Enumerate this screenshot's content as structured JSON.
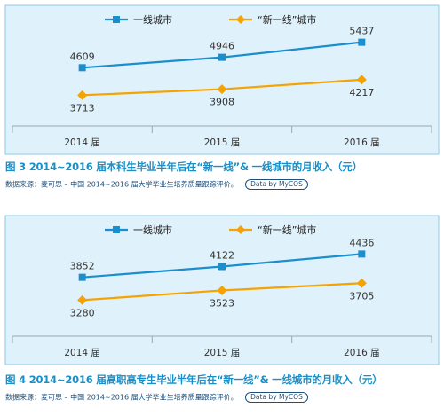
{
  "colors": {
    "panel_bg": "#dff1fa",
    "panel_border": "#8ec9e6",
    "series_first_tier": "#1b8fce",
    "series_new_first_tier": "#f5a300",
    "caption": "#1a8fc7",
    "source_text": "#1f4f7a"
  },
  "chart_data": [
    {
      "type": "line",
      "title": "",
      "categories": [
        "2014 届",
        "2015 届",
        "2016 届"
      ],
      "series": [
        {
          "name": "一线城市",
          "values": [
            4609,
            4946,
            5437
          ],
          "marker": "square"
        },
        {
          "name": "“新一线”城市",
          "values": [
            3713,
            3908,
            4217
          ],
          "marker": "diamond"
        }
      ],
      "data_labels": {
        "一线城市": [
          "4609",
          "4946",
          "5437"
        ],
        "“新一线”城市": [
          "3713",
          "3908",
          "4217"
        ]
      },
      "legend_position": "top",
      "grid": false,
      "ylim": [
        3000,
        5600
      ],
      "caption": "图 3 2014~2016 届本科生毕业半年后在“新一线”& 一线城市的月收入（元）",
      "source": "数据来源：麦可思 – 中国 2014~2016 届大学毕业生培养质量跟踪评价。",
      "badge": "Data by MyCOS"
    },
    {
      "type": "line",
      "title": "",
      "categories": [
        "2014 届",
        "2015 届",
        "2016 届"
      ],
      "series": [
        {
          "name": "一线城市",
          "values": [
            3852,
            4122,
            4436
          ],
          "marker": "square"
        },
        {
          "name": "“新一线”城市",
          "values": [
            3280,
            3523,
            3705
          ],
          "marker": "diamond"
        }
      ],
      "data_labels": {
        "一线城市": [
          "3852",
          "4122",
          "4436"
        ],
        "“新一线”城市": [
          "3280",
          "3523",
          "3705"
        ]
      },
      "legend_position": "top",
      "grid": false,
      "ylim": [
        2600,
        4600
      ],
      "caption": "图 4 2014~2016 届高职高专生毕业半年后在“新一线”& 一线城市的月收入（元）",
      "source": "数据来源：麦可思 – 中国 2014~2016 届大学毕业生培养质量跟踪评价。",
      "badge": "Data by MyCOS"
    }
  ]
}
